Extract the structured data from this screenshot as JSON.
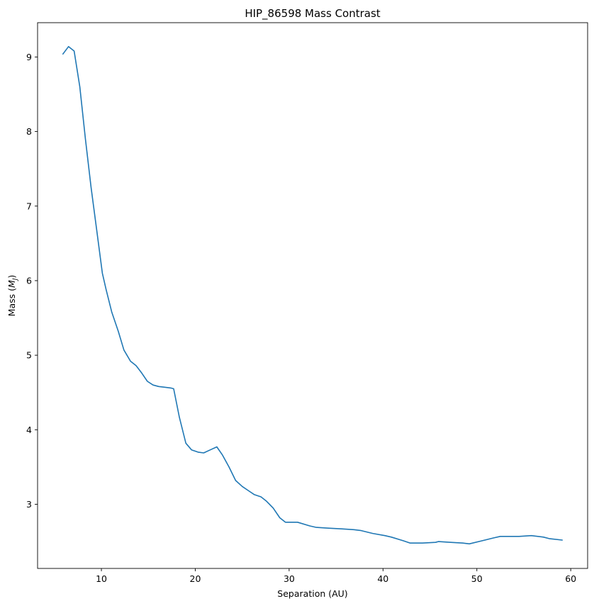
{
  "chart_data": {
    "type": "line",
    "title": "HIP_86598 Mass Contrast",
    "xlabel": "Separation (AU)",
    "ylabel_prefix": "Mass (",
    "ylabel_unit_main": "M",
    "ylabel_unit_sub": "J",
    "ylabel_suffix": ")",
    "xlim": [
      3.2,
      61.8
    ],
    "ylim": [
      2.14,
      9.46
    ],
    "xticks": [
      10,
      20,
      30,
      40,
      50,
      60
    ],
    "xtick_labels": [
      "10",
      "20",
      "30",
      "40",
      "50",
      "60"
    ],
    "yticks": [
      3,
      4,
      5,
      6,
      7,
      8,
      9
    ],
    "ytick_labels": [
      "3",
      "4",
      "5",
      "6",
      "7",
      "8",
      "9"
    ],
    "grid": false,
    "series": [
      {
        "color": "#1f77b4",
        "x": [
          5.9,
          6.5,
          7.1,
          7.7,
          8.3,
          8.9,
          9.5,
          10.1,
          10.5,
          11.1,
          11.8,
          12.4,
          13.1,
          13.7,
          14.3,
          14.9,
          15.5,
          16.1,
          16.8,
          17.4,
          17.7,
          18.3,
          19.0,
          19.6,
          20.3,
          20.9,
          21.6,
          22.3,
          22.9,
          23.6,
          24.3,
          25.0,
          25.7,
          26.3,
          27.0,
          27.6,
          28.3,
          29.0,
          29.6,
          30.9,
          32.2,
          32.9,
          34.2,
          35.6,
          36.9,
          37.6,
          38.9,
          40.2,
          40.9,
          42.2,
          42.9,
          44.2,
          45.6,
          45.9,
          47.2,
          48.5,
          49.2,
          50.5,
          51.8,
          52.5,
          53.8,
          54.5,
          55.8,
          57.1,
          57.7,
          59.1
        ],
        "y": [
          9.04,
          9.14,
          9.08,
          8.6,
          7.9,
          7.25,
          6.68,
          6.1,
          5.88,
          5.58,
          5.32,
          5.07,
          4.92,
          4.86,
          4.76,
          4.65,
          4.6,
          4.58,
          4.57,
          4.56,
          4.55,
          4.17,
          3.82,
          3.73,
          3.7,
          3.69,
          3.73,
          3.77,
          3.66,
          3.5,
          3.32,
          3.24,
          3.18,
          3.13,
          3.1,
          3.04,
          2.95,
          2.82,
          2.76,
          2.76,
          2.71,
          2.69,
          2.68,
          2.67,
          2.66,
          2.65,
          2.61,
          2.58,
          2.56,
          2.51,
          2.48,
          2.48,
          2.49,
          2.5,
          2.49,
          2.48,
          2.47,
          2.51,
          2.55,
          2.57,
          2.57,
          2.57,
          2.58,
          2.56,
          2.54,
          2.52
        ]
      }
    ]
  }
}
